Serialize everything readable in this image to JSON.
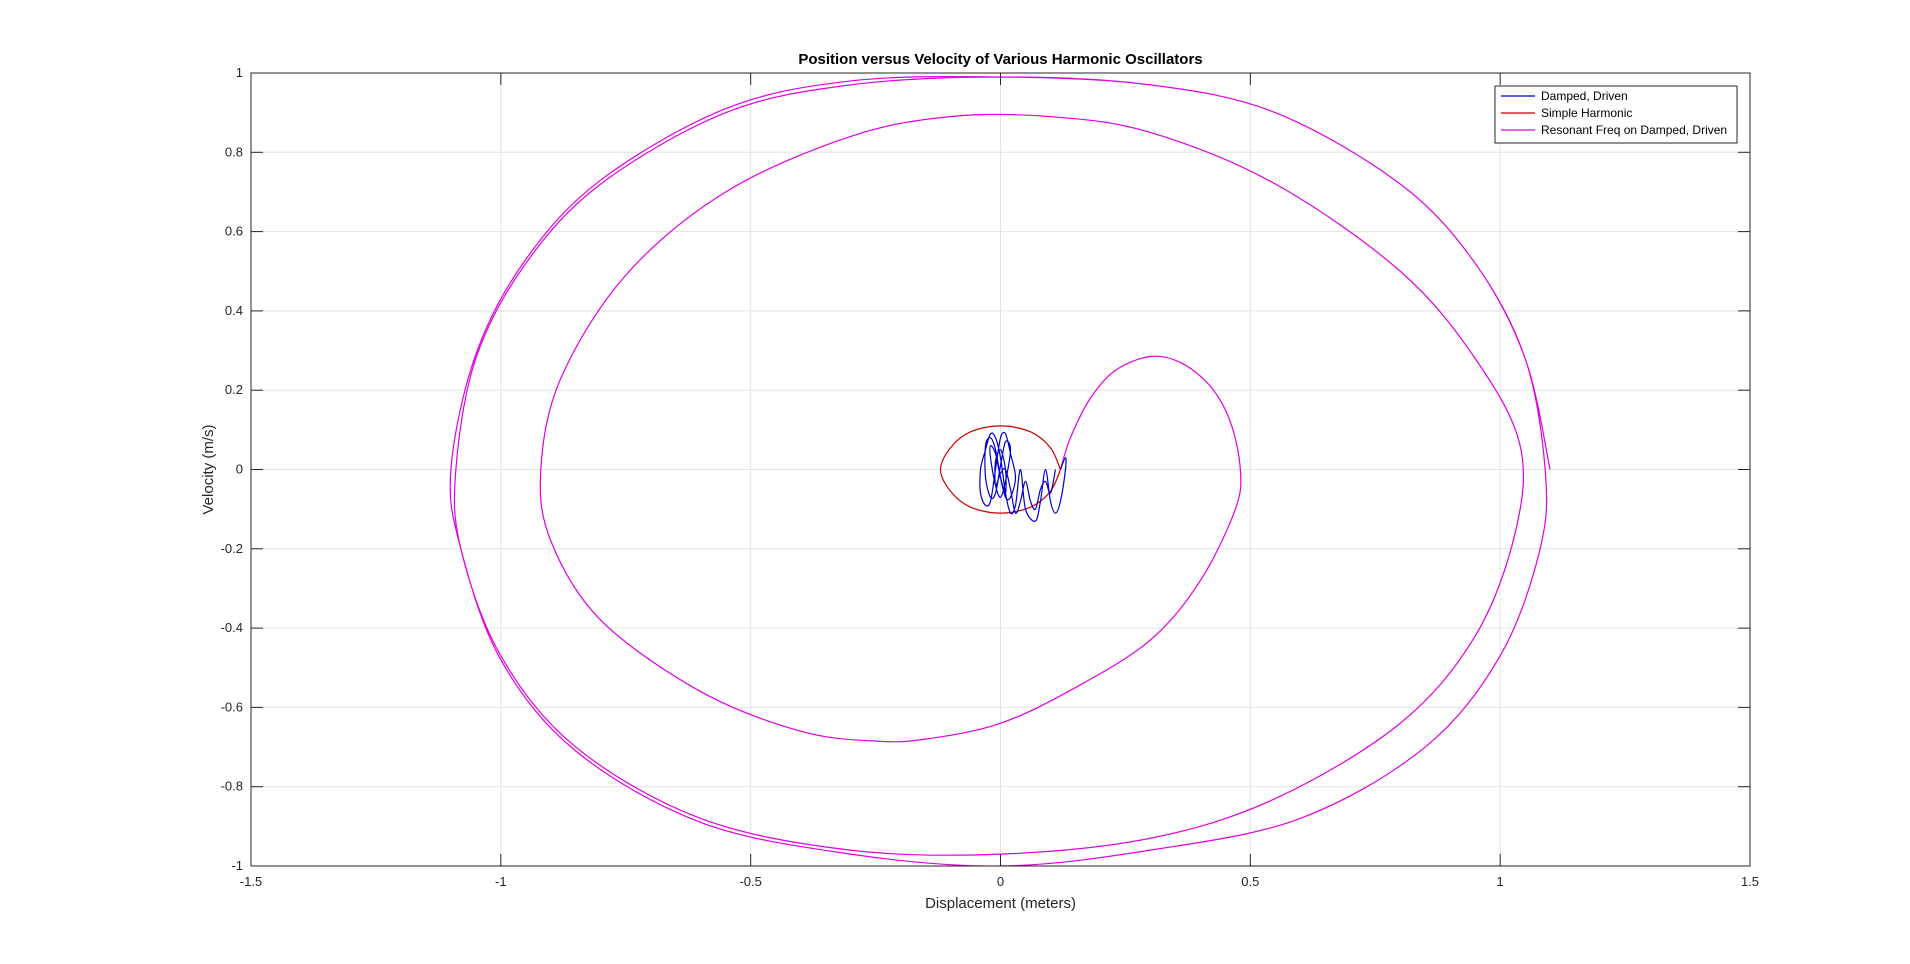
{
  "chart_data": {
    "type": "line",
    "title": "Position versus Velocity of Various Harmonic Oscillators",
    "xlabel": "Displacement (meters)",
    "ylabel": "Velocity (m/s)",
    "xlim": [
      -1.5,
      1.5
    ],
    "ylim": [
      -1,
      1
    ],
    "xticks": [
      -1.5,
      -1,
      -0.5,
      0,
      0.5,
      1,
      1.5
    ],
    "xtick_labels": [
      "-1.5",
      "-1",
      "-0.5",
      "0",
      "0.5",
      "1",
      "1.5"
    ],
    "yticks": [
      -1,
      -0.8,
      -0.6,
      -0.4,
      -0.2,
      0,
      0.2,
      0.4,
      0.6,
      0.8,
      1
    ],
    "ytick_labels": [
      "-1",
      "-0.8",
      "-0.6",
      "-0.4",
      "-0.2",
      "0",
      "0.2",
      "0.4",
      "0.6",
      "0.8",
      "1"
    ],
    "grid": true,
    "legend_position": "top-right",
    "legend": [
      "Damped, Driven",
      "Simple Harmonic",
      "Resonant Freq on Damped, Driven"
    ],
    "series": [
      {
        "name": "Damped, Driven",
        "color": "#0000cc",
        "x": [
          0.12,
          0.13,
          0.13,
          0.12,
          0.11,
          0.1,
          0.09,
          0.08,
          0.07,
          0.05,
          0.04,
          0.03,
          0.02,
          0.01,
          0.0,
          -0.01,
          -0.02,
          -0.03,
          -0.04,
          -0.04,
          -0.03,
          -0.02,
          -0.01,
          0.0,
          0.01,
          0.02,
          0.03,
          0.02,
          0.01,
          0.0,
          -0.01,
          -0.02,
          -0.03,
          -0.03,
          -0.02,
          -0.01,
          0.0,
          0.01,
          0.02,
          0.01,
          0.0,
          -0.01,
          -0.02,
          -0.02,
          -0.01,
          0.0,
          0.01,
          0.01,
          0.0,
          -0.01,
          -0.01,
          0.0,
          0.01,
          0.02,
          0.03,
          0.04,
          0.05,
          0.06,
          0.07,
          0.08,
          0.09,
          0.1,
          0.11
        ],
        "y": [
          0.0,
          0.03,
          0.0,
          -0.08,
          -0.11,
          -0.08,
          0.0,
          -0.08,
          -0.13,
          -0.1,
          0.0,
          -0.09,
          -0.11,
          -0.06,
          0.03,
          0.08,
          0.09,
          0.05,
          0.0,
          -0.06,
          -0.09,
          -0.08,
          0.0,
          0.08,
          0.09,
          0.04,
          -0.02,
          -0.07,
          -0.07,
          -0.02,
          0.05,
          0.08,
          0.06,
          -0.02,
          -0.07,
          -0.06,
          0.01,
          0.07,
          0.05,
          -0.03,
          -0.07,
          -0.04,
          0.03,
          0.06,
          0.04,
          -0.02,
          -0.06,
          0.0,
          0.05,
          0.02,
          -0.04,
          -0.01,
          0.0,
          -0.05,
          -0.11,
          -0.08,
          -0.03,
          -0.08,
          -0.1,
          -0.05,
          -0.03,
          -0.06,
          0.0
        ]
      },
      {
        "name": "Simple Harmonic",
        "color": "#cc0000",
        "x": [
          0.12,
          0.1,
          0.06,
          0.0,
          -0.06,
          -0.1,
          -0.12,
          -0.1,
          -0.06,
          0.0,
          0.06,
          0.1,
          0.12
        ],
        "y": [
          0.0,
          0.055,
          0.095,
          0.11,
          0.095,
          0.055,
          0.0,
          -0.055,
          -0.095,
          -0.11,
          -0.095,
          -0.055,
          0.0
        ]
      },
      {
        "name": "Resonant Freq on Damped, Driven",
        "color": "#e000e0",
        "x": [
          0.12,
          0.14,
          0.18,
          0.23,
          0.3,
          0.36,
          0.42,
          0.46,
          0.48,
          0.47,
          0.4,
          0.3,
          0.15,
          0.0,
          -0.15,
          -0.25,
          -0.4,
          -0.6,
          -0.8,
          -0.9,
          -0.92,
          -0.88,
          -0.75,
          -0.55,
          -0.3,
          -0.1,
          0.1,
          0.3,
          0.55,
          0.8,
          0.95,
          1.04,
          1.03,
          0.95,
          0.8,
          0.55,
          0.3,
          0.0,
          -0.3,
          -0.6,
          -0.85,
          -1.0,
          -1.08,
          -1.09,
          -1.05,
          -0.95,
          -0.8,
          -0.55,
          -0.3,
          0.0,
          0.3,
          0.55,
          0.8,
          0.95,
          1.05,
          1.09,
          1.08,
          1.0,
          0.85,
          0.6,
          0.3,
          0.0,
          -0.3,
          -0.6,
          -0.85,
          -1.0,
          -1.08,
          -1.1,
          -1.05,
          -0.95,
          -0.8,
          -0.55,
          -0.3,
          0.0,
          0.3,
          0.55,
          0.8,
          0.95,
          1.05,
          1.1
        ],
        "y": [
          0.0,
          0.08,
          0.18,
          0.25,
          0.285,
          0.27,
          0.21,
          0.12,
          0.0,
          -0.1,
          -0.28,
          -0.43,
          -0.55,
          -0.64,
          -0.68,
          -0.685,
          -0.66,
          -0.56,
          -0.38,
          -0.18,
          0.0,
          0.23,
          0.49,
          0.7,
          0.84,
          0.89,
          0.89,
          0.85,
          0.72,
          0.5,
          0.28,
          0.06,
          -0.16,
          -0.42,
          -0.64,
          -0.83,
          -0.93,
          -0.97,
          -0.96,
          -0.88,
          -0.7,
          -0.47,
          -0.2,
          0.0,
          0.28,
          0.52,
          0.72,
          0.9,
          0.97,
          0.99,
          0.97,
          0.9,
          0.72,
          0.52,
          0.28,
          0.0,
          -0.2,
          -0.47,
          -0.7,
          -0.88,
          -0.96,
          -1.0,
          -0.97,
          -0.89,
          -0.71,
          -0.48,
          -0.2,
          0.0,
          0.29,
          0.53,
          0.73,
          0.91,
          0.98,
          0.99,
          0.97,
          0.9,
          0.72,
          0.52,
          0.28,
          0.0
        ]
      }
    ]
  }
}
